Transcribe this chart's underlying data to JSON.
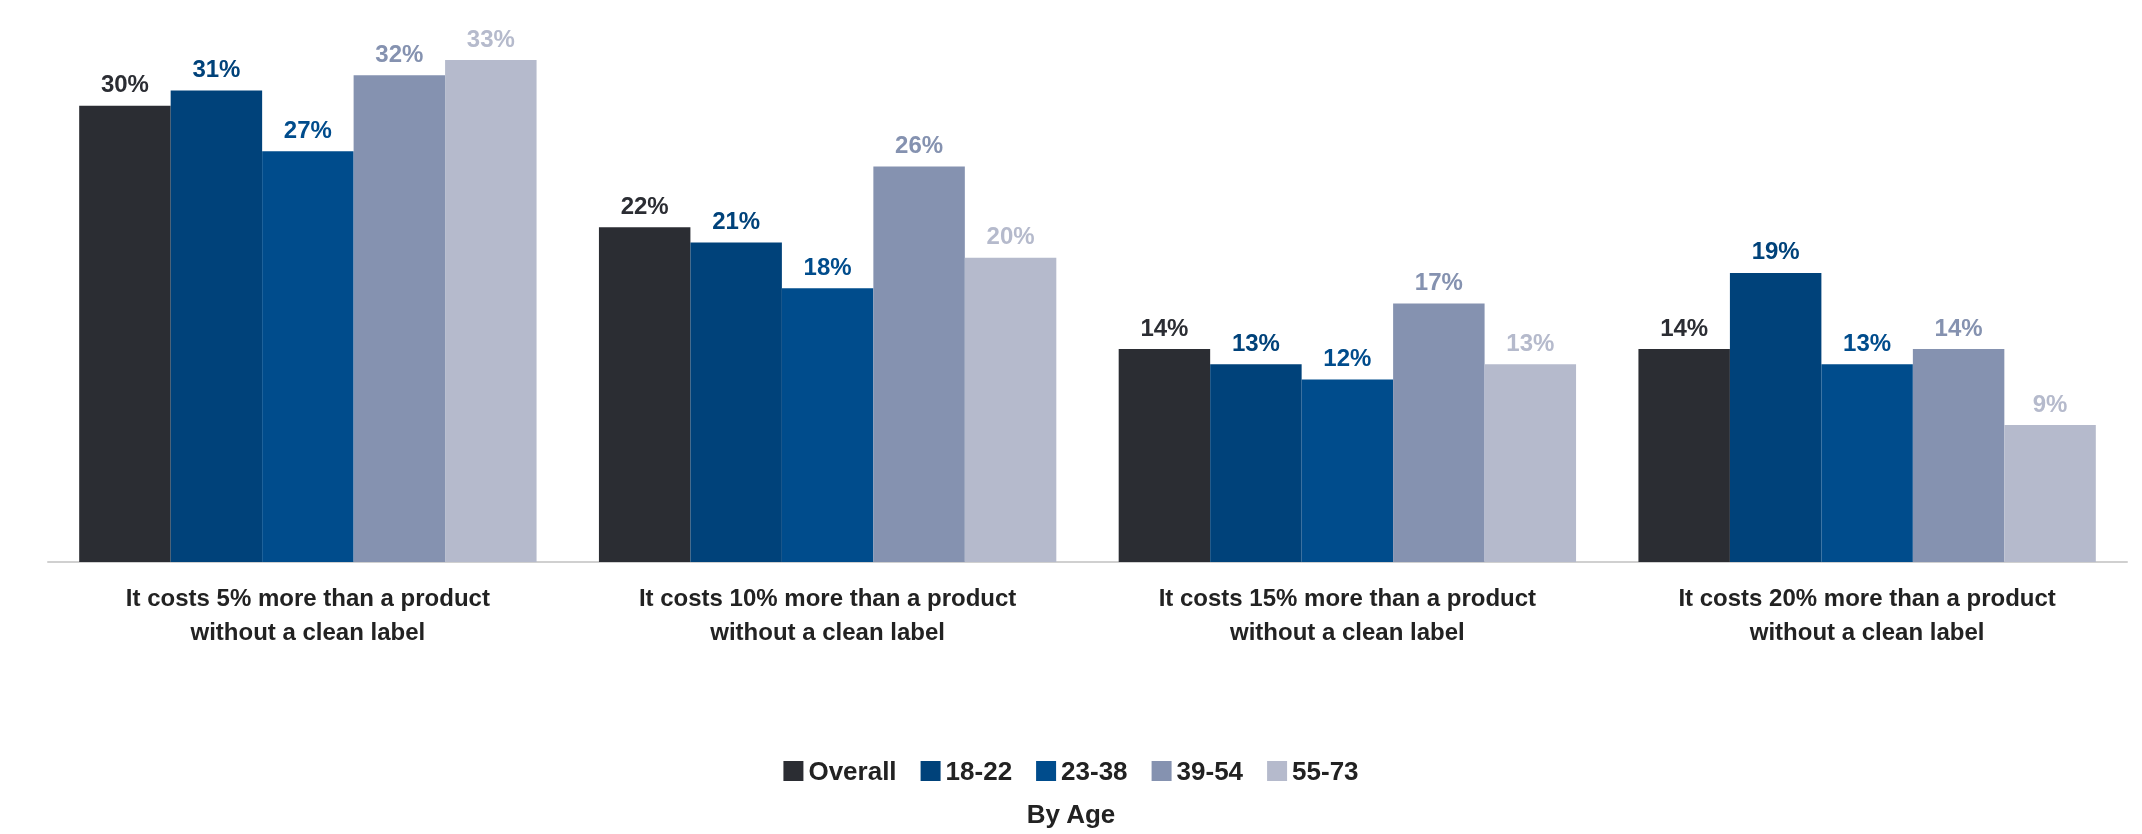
{
  "chart_data": {
    "type": "bar",
    "categories": [
      "It costs 5% more than a product\nwithout a clean label",
      "It costs 10% more than a product\nwithout a clean label",
      "It costs 15% more than a product\nwithout a clean label",
      "It costs 20% more than a product\nwithout a clean label"
    ],
    "series": [
      {
        "name": "Overall",
        "color": "#2b2d33",
        "values": [
          30,
          22,
          14,
          14
        ],
        "value_labels": [
          "30%",
          "22%",
          "14%",
          "14%"
        ]
      },
      {
        "name": "18-22",
        "color": "#00427a",
        "values": [
          31,
          21,
          13,
          19
        ],
        "value_labels": [
          "31%",
          "21%",
          "13%",
          "19%"
        ]
      },
      {
        "name": "23-38",
        "color": "#004c8c",
        "values": [
          27,
          18,
          12,
          13
        ],
        "value_labels": [
          "27%",
          "18%",
          "12%",
          "13%"
        ]
      },
      {
        "name": "39-54",
        "color": "#8592b0",
        "values": [
          32,
          26,
          17,
          14
        ],
        "value_labels": [
          "32%",
          "26%",
          "17%",
          "14%"
        ]
      },
      {
        "name": "55-73",
        "color": "#b5bacc",
        "values": [
          33,
          20,
          13,
          9
        ],
        "value_labels": [
          "33%",
          "20%",
          "13%",
          "9%"
        ]
      }
    ],
    "legend": "bottom",
    "legend_title": "By Age"
  }
}
